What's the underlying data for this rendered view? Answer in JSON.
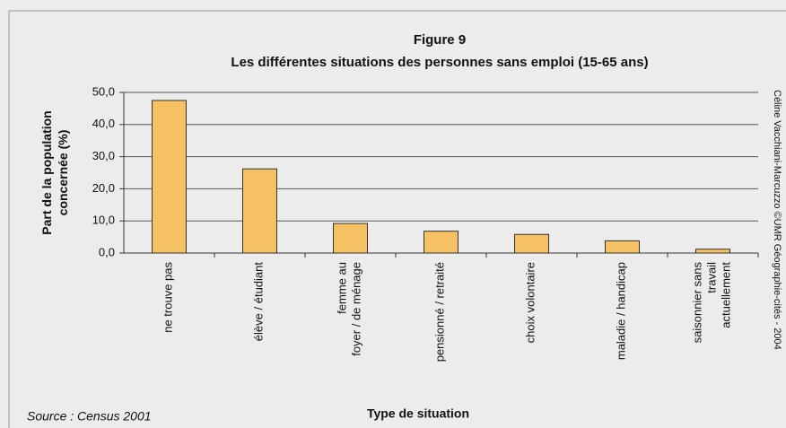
{
  "chart_data": {
    "type": "bar",
    "title": "Figure 9",
    "subtitle": "Les différentes situations des personnes sans emploi (15-65 ans)",
    "y_label": "Part de la population\nconcernée (%)",
    "x_label": "Type de situation",
    "source": "Source : Census 2001",
    "credit": "Céline Vacchiani-Marcuzzo ©UMR Géographie-cités - 2004",
    "categories": [
      "ne trouve pas",
      "élève / étudiant",
      "femme au\nfoyer / de ménage",
      "pensionné / retraité",
      "choix volontaire",
      "maladie / handicap",
      "saisonnier sans\ntravail\nactuellement"
    ],
    "values": [
      47.5,
      26.2,
      9.2,
      6.8,
      5.8,
      3.8,
      1.2
    ],
    "color": "#f6c162",
    "ylim": [
      0,
      50
    ],
    "yticks": [
      {
        "value": 0,
        "label": "0,0"
      },
      {
        "value": 10,
        "label": "10,0"
      },
      {
        "value": 20,
        "label": "20,0"
      },
      {
        "value": 30,
        "label": "30,0"
      },
      {
        "value": 40,
        "label": "40,0"
      },
      {
        "value": 50,
        "label": "50,0"
      }
    ],
    "grid": true
  }
}
